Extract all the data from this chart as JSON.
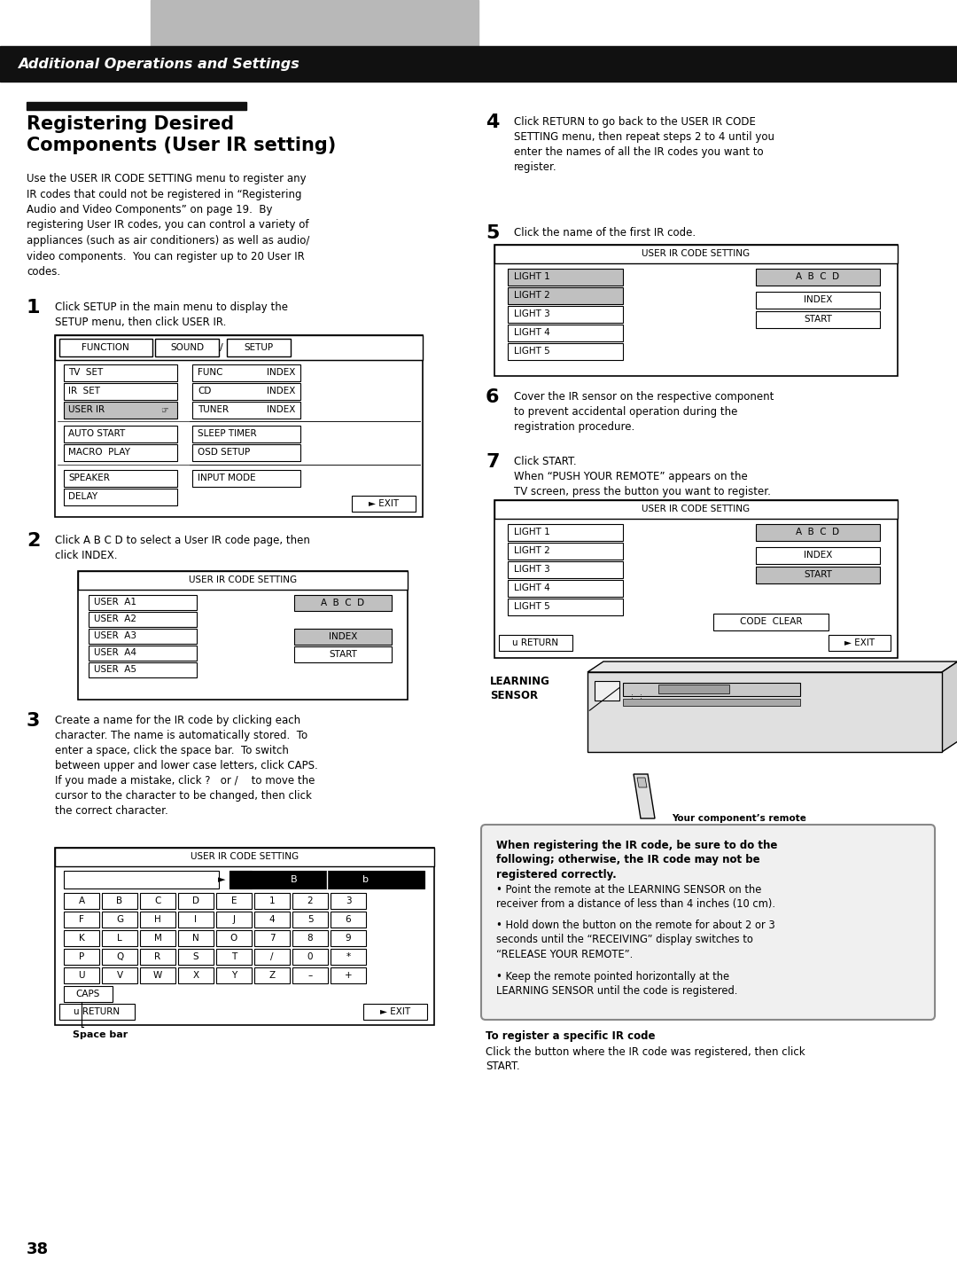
{
  "page_number": "38",
  "header_text": "Additional Operations and Settings",
  "header_bg": "#1a1a1a",
  "header_text_color": "#ffffff",
  "page_bg": "#ffffff",
  "warning_title": "When registering the IR code, be sure to do the\nfollowing; otherwise, the IR code may not be\nregistered correctly.",
  "warning_bullets": [
    "Point the remote at the LEARNING SENSOR on the\nreceiver from a distance of less than 4 inches (10 cm).",
    "Hold down the button on the remote for about 2 or 3\nseconds until the “RECEIVING” display switches to\n“RELEASE YOUR REMOTE”.",
    "Keep the remote pointed horizontally at the\nLEARNING SENSOR until the code is registered."
  ],
  "to_register_title": "To register a specific IR code",
  "to_register_text": "Click the button where the IR code was registered, then click\nSTART.",
  "your_component_label": "Your component’s remote"
}
